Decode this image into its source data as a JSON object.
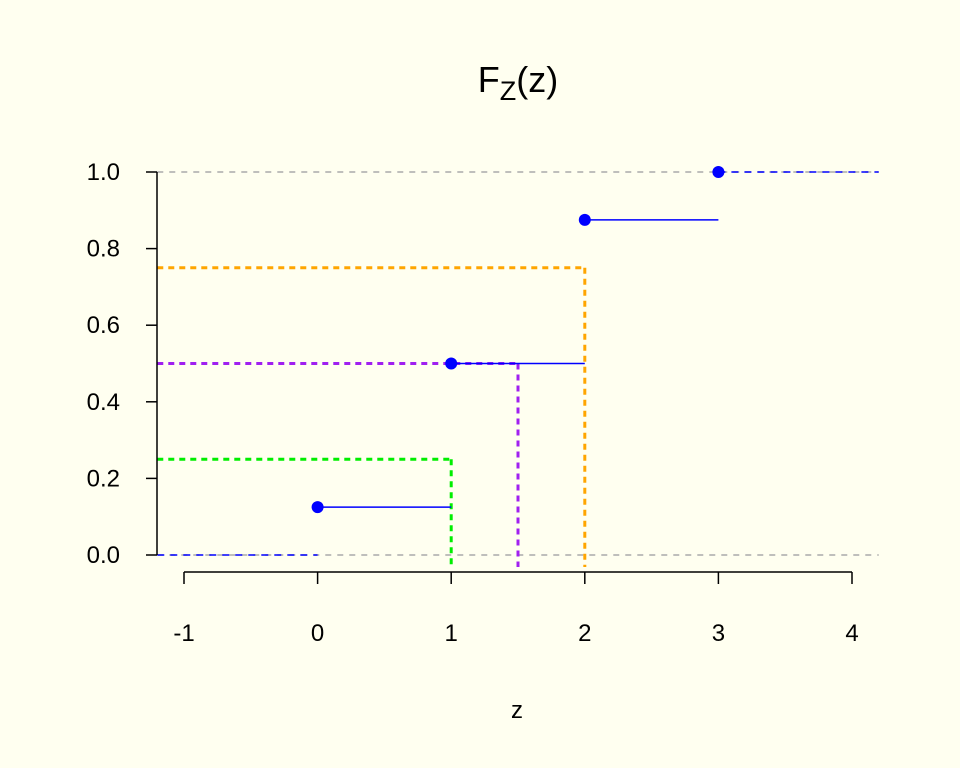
{
  "chart_data": {
    "type": "line",
    "title": {
      "main": "F",
      "subscript": "Z",
      "suffix": "(z)"
    },
    "xlabel": "z",
    "ylabel": "",
    "xlim": [
      -1.2,
      4.2
    ],
    "ylim": [
      0,
      1
    ],
    "x_ticks": [
      {
        "value": -1,
        "label": "-1"
      },
      {
        "value": 0,
        "label": "0"
      },
      {
        "value": 1,
        "label": "1"
      },
      {
        "value": 2,
        "label": "2"
      },
      {
        "value": 3,
        "label": "3"
      },
      {
        "value": 4,
        "label": "4"
      }
    ],
    "y_ticks": [
      {
        "value": 0,
        "label": "0.0"
      },
      {
        "value": 0.2,
        "label": "0.2"
      },
      {
        "value": 0.4,
        "label": "0.4"
      },
      {
        "value": 0.6,
        "label": "0.6"
      },
      {
        "value": 0.8,
        "label": "0.8"
      },
      {
        "value": 1,
        "label": "1.0"
      }
    ],
    "reference_lines": [
      {
        "y": 0,
        "color": "#aaaaaa"
      },
      {
        "y": 1,
        "color": "#aaaaaa"
      }
    ],
    "step_color": "#0000ff",
    "steps": [
      {
        "x_start": -1.2,
        "x_end": 0,
        "y": 0,
        "dashed": true,
        "point": false
      },
      {
        "x_start": 0,
        "x_end": 1,
        "y": 0.125,
        "dashed": false,
        "point": true
      },
      {
        "x_start": 1,
        "x_end": 2,
        "y": 0.5,
        "dashed": false,
        "point": true
      },
      {
        "x_start": 2,
        "x_end": 3,
        "y": 0.875,
        "dashed": false,
        "point": true
      },
      {
        "x_start": 3,
        "x_end": 4.2,
        "y": 1,
        "dashed": true,
        "point": true
      }
    ],
    "quantile_guides": [
      {
        "p": 0.25,
        "q": 1,
        "color": "#00ee00"
      },
      {
        "p": 0.5,
        "q": 1.5,
        "color": "#a020f0"
      },
      {
        "p": 0.75,
        "q": 2,
        "color": "#ffa500"
      }
    ]
  }
}
